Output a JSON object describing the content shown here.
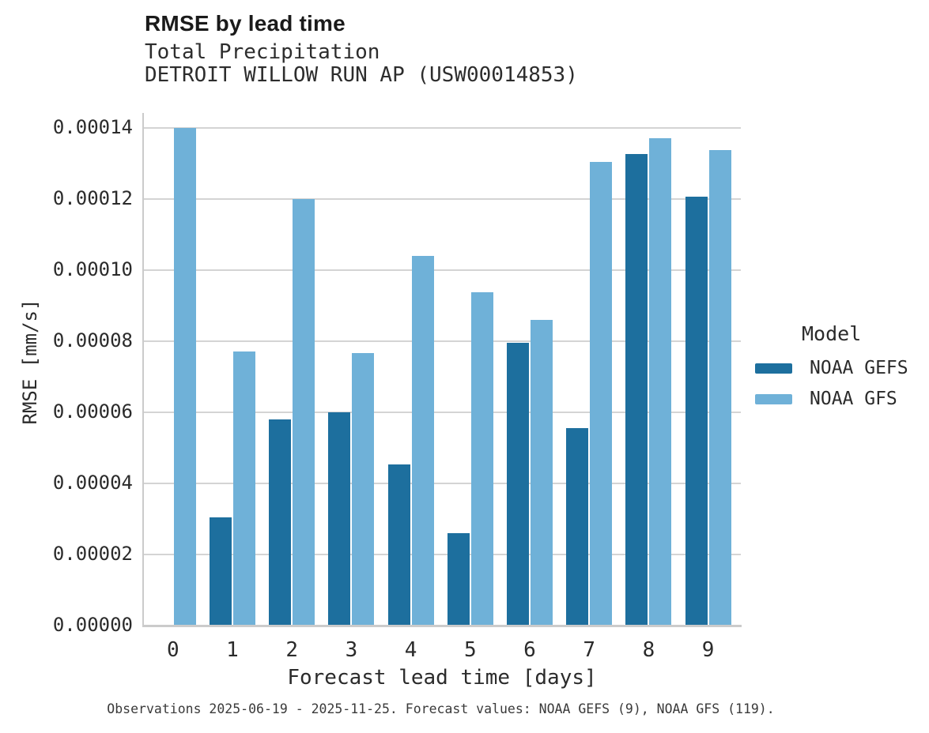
{
  "header": {
    "title": "RMSE by lead time",
    "subtitle": "Total Precipitation",
    "station": "DETROIT WILLOW RUN AP (USW00014853)"
  },
  "footer": {
    "note": "Observations 2025-06-19 - 2025-11-25. Forecast values: NOAA GEFS (9), NOAA GFS (119)."
  },
  "colors": {
    "gefs_dark_blue": "#1d6f9e",
    "gfs_light_blue": "#6fb1d8",
    "gridline_gray": "#d4d4d4",
    "axis_gray": "#cbcbcb"
  },
  "chart_data": {
    "type": "bar",
    "title": "RMSE by lead time",
    "subtitle": "Total Precipitation",
    "station": "DETROIT WILLOW RUN AP (USW00014853)",
    "xlabel": "Forecast lead time [days]",
    "ylabel": "RMSE [mm/s]",
    "categories": [
      "0",
      "1",
      "2",
      "3",
      "4",
      "5",
      "6",
      "7",
      "8",
      "9"
    ],
    "series": [
      {
        "name": "NOAA GEFS",
        "color": "#1d6f9e",
        "values": [
          null,
          3.05e-05,
          5.79e-05,
          6e-05,
          4.53e-05,
          2.6e-05,
          7.96e-05,
          5.55e-05,
          0.0001326,
          0.0001207
        ]
      },
      {
        "name": "NOAA GFS",
        "color": "#6fb1d8",
        "values": [
          0.00014,
          7.71e-05,
          0.00012,
          7.66e-05,
          0.000104,
          9.37e-05,
          8.61e-05,
          0.0001304,
          0.0001372,
          0.0001337
        ]
      }
    ],
    "ylim": [
      0,
      0.00014
    ],
    "ytick_labels": [
      "0.00000",
      "0.00002",
      "0.00004",
      "0.00006",
      "0.00008",
      "0.00010",
      "0.00012",
      "0.00014"
    ],
    "grid": true,
    "legend": {
      "title": "Model",
      "position": "right"
    }
  }
}
